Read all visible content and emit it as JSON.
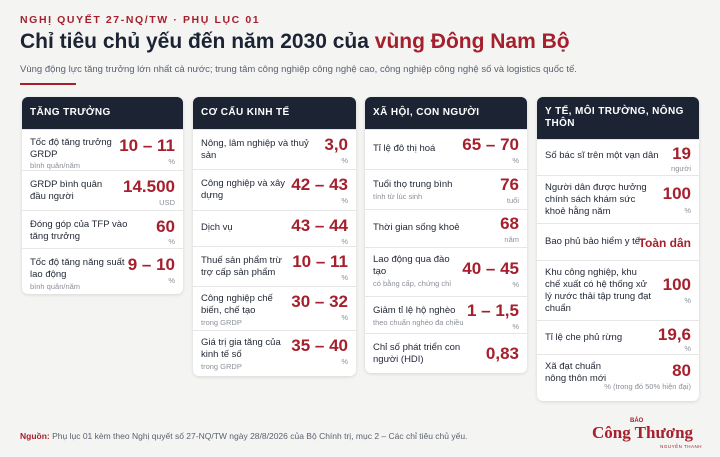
{
  "header": {
    "eyebrow": "NGHỊ QUYẾT 27-NQ/TW · PHỤ LỤC 01",
    "title_prefix": "Chỉ tiêu chủ yếu đến năm 2030 của ",
    "title_accent": "vùng Đông Nam Bộ",
    "subtitle": "Vùng động lực tăng trưởng lớn nhất cả nước; trung tâm công nghiệp công nghệ cao, công nghiệp công nghệ số và logistics quốc tế."
  },
  "columns": [
    {
      "title": "TĂNG TRƯỞNG",
      "rows": [
        {
          "label": "Tốc độ tăng trưởng GRDP",
          "note": "bình quân/năm",
          "value": "10 – 11",
          "unit": "%"
        },
        {
          "label": "GRDP bình quân đầu người",
          "note": "",
          "value": "14.500",
          "unit": "USD"
        },
        {
          "label": "Đóng góp của TFP vào tăng trưởng",
          "note": "",
          "value": "60",
          "unit": "%"
        },
        {
          "label": "Tốc độ tăng năng suất lao động",
          "note": "bình quân/năm",
          "value": "9 – 10",
          "unit": "%"
        }
      ]
    },
    {
      "title": "CƠ CẤU KINH TẾ",
      "rows": [
        {
          "label": "Nông, lâm nghiệp và thuỷ sản",
          "note": "",
          "value": "3,0",
          "unit": "%"
        },
        {
          "label": "Công nghiệp và xây dựng",
          "note": "",
          "value": "42 – 43",
          "unit": "%"
        },
        {
          "label": "Dịch vụ",
          "note": "",
          "value": "43 – 44",
          "unit": "%"
        },
        {
          "label": "Thuế sản phẩm trừ trợ cấp sản phẩm",
          "note": "",
          "value": "10 – 11",
          "unit": "%"
        },
        {
          "label": "Công nghiệp chế biến, chế tạo",
          "note": "trong GRDP",
          "value": "30 – 32",
          "unit": "%"
        },
        {
          "label": "Giá trị gia tăng của kinh tế số",
          "note": "trong GRDP",
          "value": "35 – 40",
          "unit": "%"
        }
      ]
    },
    {
      "title": "XÃ HỘI, CON NGƯỜI",
      "rows": [
        {
          "label": "Tỉ lệ đô thị hoá",
          "note": "",
          "value": "65 – 70",
          "unit": "%"
        },
        {
          "label": "Tuổi thọ trung bình",
          "note": "tính từ lúc sinh",
          "value": "76",
          "unit": "tuổi"
        },
        {
          "label": "Thời gian sống khoẻ",
          "note": "",
          "value": "68",
          "unit": "năm"
        },
        {
          "label": "Lao động qua đào tạo",
          "note": "có bằng cấp, chứng chỉ",
          "value": "40 – 45",
          "unit": "%"
        },
        {
          "label": "Giảm tỉ lệ hộ nghèo",
          "note": "theo chuẩn nghèo đa chiều",
          "value": "1 – 1,5",
          "unit": "%"
        },
        {
          "label": "Chỉ số phát triển con người (HDI)",
          "note": "",
          "value": "0,83",
          "unit": ""
        }
      ]
    },
    {
      "title": "Y TẾ, MÔI TRƯỜNG, NÔNG THÔN",
      "rows": [
        {
          "label": "Số bác sĩ trên một vạn dân",
          "note": "",
          "value": "19",
          "unit": "người"
        },
        {
          "label": "Người dân được hưởng chính sách khám sức khoẻ hằng năm",
          "note": "",
          "value": "100",
          "unit": "%"
        },
        {
          "label": "Bao phủ bảo hiểm y tế",
          "note": "",
          "value": "Toàn dân",
          "unit": ""
        },
        {
          "label": "Khu công nghiệp, khu chế xuất có hệ thống xử lý nước thải tập trung đạt chuẩn",
          "note": "",
          "value": "100",
          "unit": "%"
        },
        {
          "label": "Tỉ lệ che phủ rừng",
          "note": "",
          "value": "19,6",
          "unit": "%"
        },
        {
          "label": "Xã đạt chuẩn nông thôn mới",
          "note": "",
          "value": "80",
          "unit": "% (trong đó 50% hiện đại)"
        }
      ]
    }
  ],
  "footer": {
    "source_lead": "Nguồn:",
    "source_text": " Phụ lục 01 kèm theo Nghị quyết số 27-NQ/TW ngày 28/8/2026 của Bộ Chính trị, mục 2 – Các chỉ tiêu chủ yếu.",
    "brand_small": "BÁO",
    "brand_name": "Công Thương",
    "brand_tagline": "NGUYỄN THANH"
  },
  "colors": {
    "accent": "#a51f2d",
    "header_dark": "#1c2433",
    "background": "#f4f4f2"
  }
}
